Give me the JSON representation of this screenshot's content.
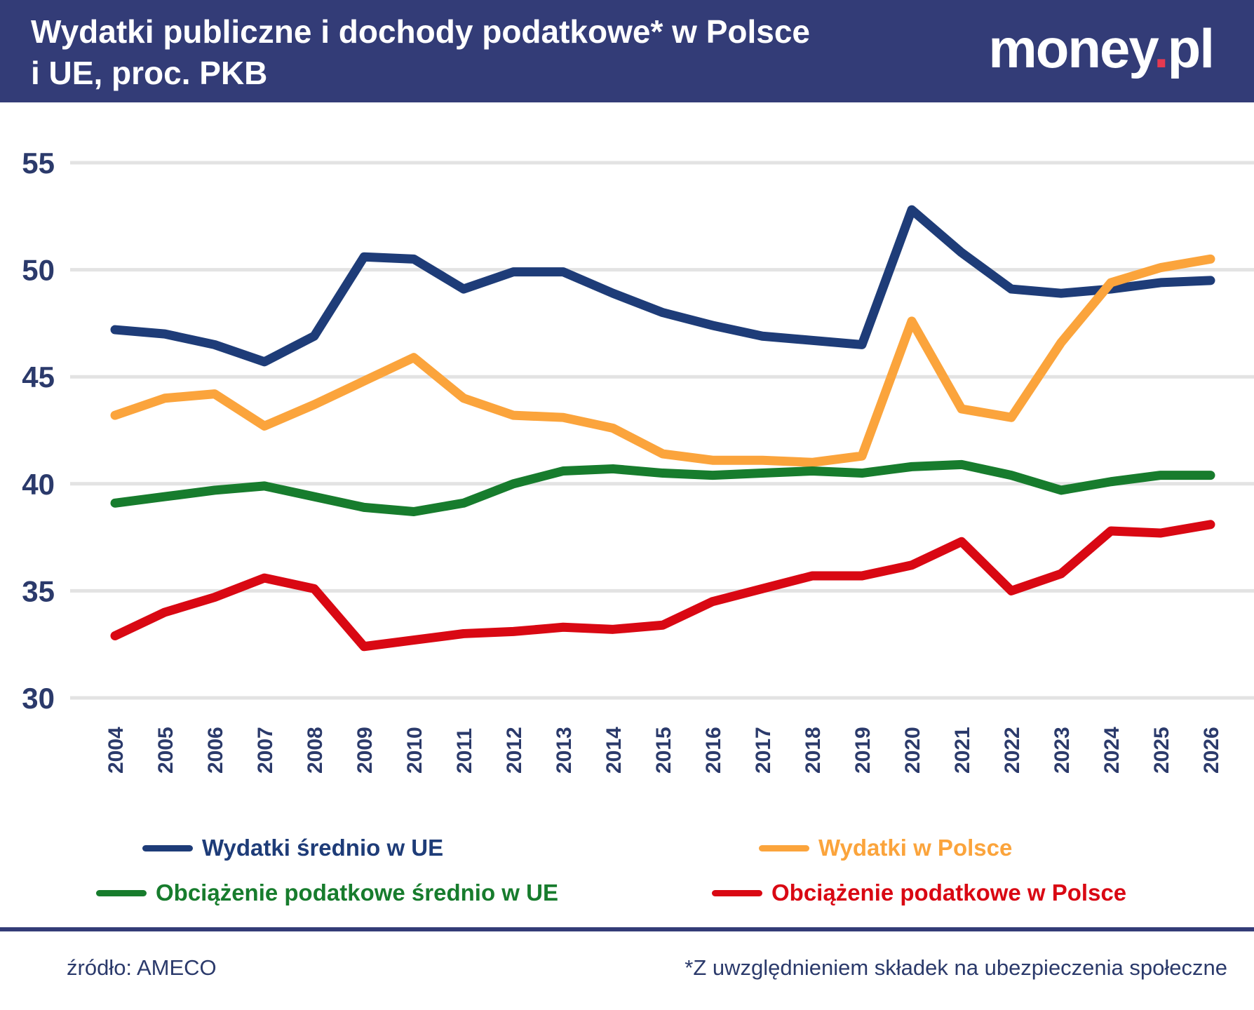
{
  "header": {
    "title_line1": "Wydatki publiczne i dochody podatkowe* w Polsce",
    "title_line2": "i UE, proc. PKB",
    "logo_part1": "money",
    "logo_dot": ".",
    "logo_part2": "pl"
  },
  "colors": {
    "header_bg": "#333c77",
    "navy": "#1e3c78",
    "orange": "#fba43c",
    "green": "#177c2d",
    "red": "#d90813",
    "axis_label": "#2b3a6b",
    "gridline": "#e3e3e3",
    "logo_dot": "#e63950",
    "white": "#ffffff"
  },
  "chart_data": {
    "type": "line",
    "x": [
      2004,
      2005,
      2006,
      2007,
      2008,
      2009,
      2010,
      2011,
      2012,
      2013,
      2014,
      2015,
      2016,
      2017,
      2018,
      2019,
      2020,
      2021,
      2022,
      2023,
      2024,
      2025,
      2026
    ],
    "ylim": [
      30,
      55
    ],
    "yticks": [
      30,
      35,
      40,
      45,
      50,
      55
    ],
    "grid": "horizontal-only",
    "legend_position": "bottom",
    "series": [
      {
        "name": "Wydatki średnio w UE",
        "color": "navy",
        "values": [
          47.2,
          47.0,
          46.5,
          45.7,
          46.9,
          50.6,
          50.5,
          49.1,
          49.9,
          49.9,
          48.9,
          48.0,
          47.4,
          46.9,
          46.7,
          46.5,
          52.8,
          50.8,
          49.1,
          48.9,
          49.1,
          49.4,
          49.5
        ]
      },
      {
        "name": "Wydatki w Polsce",
        "color": "orange",
        "values": [
          43.2,
          44.0,
          44.2,
          42.7,
          43.7,
          44.8,
          45.9,
          44.0,
          43.2,
          43.1,
          42.6,
          41.4,
          41.1,
          41.1,
          41.0,
          41.3,
          47.6,
          43.5,
          43.1,
          46.6,
          49.4,
          50.1,
          50.5
        ]
      },
      {
        "name": "Obciążenie podatkowe średnio w UE",
        "color": "green",
        "values": [
          39.1,
          39.4,
          39.7,
          39.9,
          39.4,
          38.9,
          38.7,
          39.1,
          40.0,
          40.6,
          40.7,
          40.5,
          40.4,
          40.5,
          40.6,
          40.5,
          40.8,
          40.9,
          40.4,
          39.7,
          40.1,
          40.4,
          40.4
        ]
      },
      {
        "name": "Obciążenie podatkowe w Polsce",
        "color": "red",
        "values": [
          32.9,
          34.0,
          34.7,
          35.6,
          35.1,
          32.4,
          32.7,
          33.0,
          33.1,
          33.3,
          33.2,
          33.4,
          34.5,
          35.1,
          35.7,
          35.7,
          36.2,
          37.3,
          35.0,
          35.8,
          37.8,
          37.7,
          38.1
        ]
      }
    ]
  },
  "legend": {
    "items": [
      {
        "label": "Wydatki średnio w UE",
        "color": "navy"
      },
      {
        "label": "Wydatki w Polsce",
        "color": "orange"
      },
      {
        "label": "Obciążenie podatkowe średnio w UE",
        "color": "green"
      },
      {
        "label": "Obciążenie podatkowe w Polsce",
        "color": "red"
      }
    ]
  },
  "footer": {
    "source": "źródło: AMECO",
    "note": "*Z uwzględnieniem składek na ubezpieczenia społeczne"
  }
}
